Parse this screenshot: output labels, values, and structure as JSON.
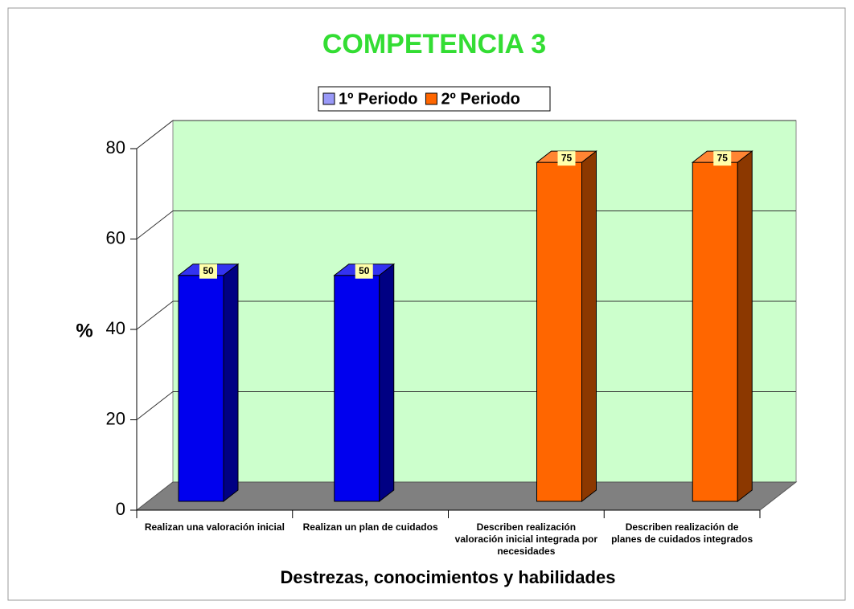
{
  "chart_data": {
    "type": "bar3d",
    "title": "COMPETENCIA 3",
    "x_label": "Destrezas, conocimientos y habilidades",
    "y_label": "%",
    "categories": [
      "Realizan una valoración inicial",
      "Realizan un plan de cuidados",
      "Describen realización valoración inicial integrada por necesidades",
      "Describen realización de planes de cuidados integrados"
    ],
    "series": [
      {
        "name": "1º Periodo",
        "color": "#0000ee",
        "values": [
          50,
          50,
          null,
          null
        ]
      },
      {
        "name": "2º Periodo",
        "color": "#ff6600",
        "values": [
          null,
          null,
          75,
          75
        ]
      }
    ],
    "ylim": [
      0,
      80
    ],
    "yticks": [
      0,
      20,
      40,
      60,
      80
    ],
    "grid": true,
    "legend": "top"
  }
}
